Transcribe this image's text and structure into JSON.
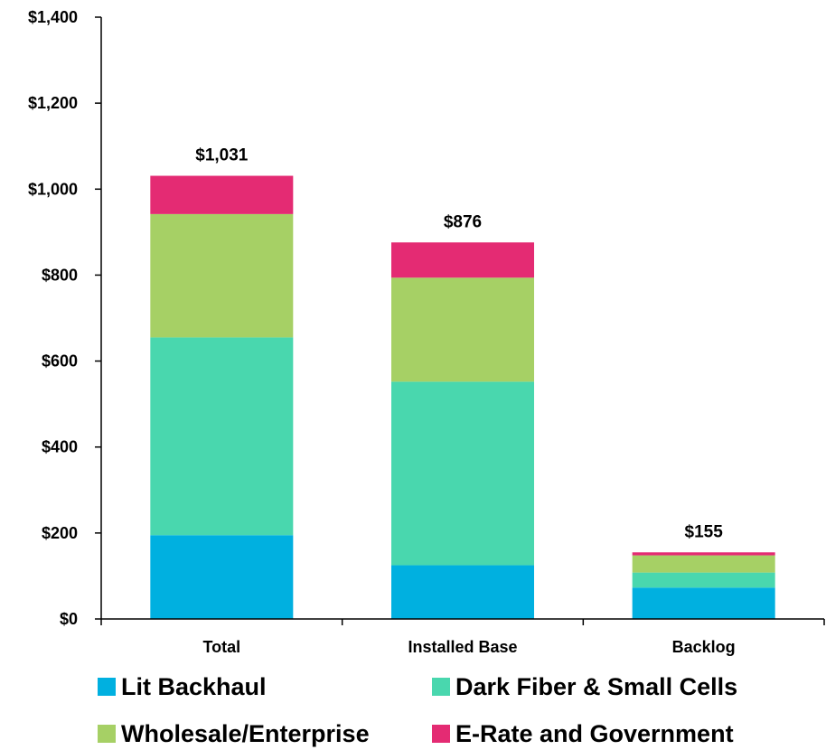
{
  "chart_data": {
    "type": "bar",
    "stacked": true,
    "categories": [
      "Total",
      "Installed Base",
      "Backlog"
    ],
    "series": [
      {
        "name": "Lit Backhaul",
        "color": "#00b0e0",
        "values": [
          195,
          125,
          73
        ]
      },
      {
        "name": "Dark Fiber & Small Cells",
        "color": "#49d7ae",
        "values": [
          460,
          427,
          35
        ]
      },
      {
        "name": "Wholesale/Enterprise",
        "color": "#a6d065",
        "values": [
          287,
          242,
          40
        ]
      },
      {
        "name": "E-Rate and Government",
        "color": "#e42b73",
        "values": [
          89,
          82,
          7
        ]
      }
    ],
    "totals": [
      "$1,031",
      "$876",
      "$155"
    ],
    "y_ticks": [
      "$0",
      "$200",
      "$400",
      "$600",
      "$800",
      "$1,000",
      "$1,200",
      "$1,400"
    ],
    "y_tick_values": [
      0,
      200,
      400,
      600,
      800,
      1000,
      1200,
      1400
    ],
    "ylim": [
      0,
      1400
    ],
    "title": "",
    "xlabel": "",
    "ylabel": "",
    "grid": false,
    "legend_position": "bottom"
  }
}
